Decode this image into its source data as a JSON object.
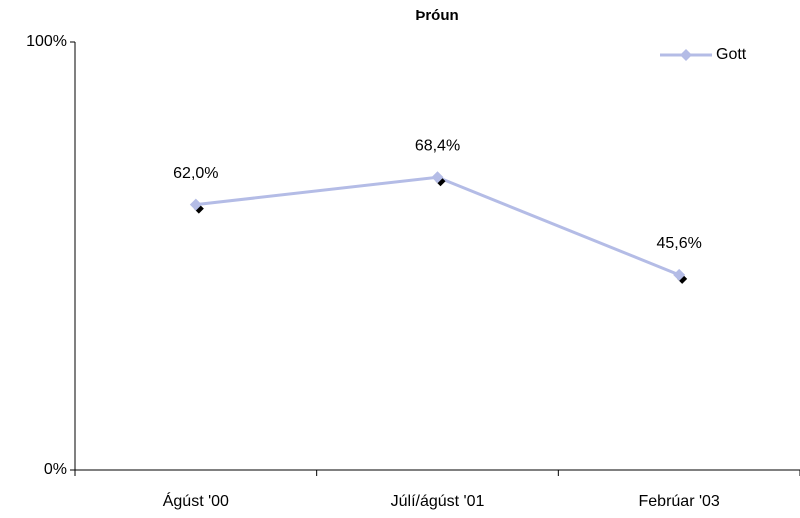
{
  "chart_data": {
    "type": "line",
    "title": "Þróun",
    "categories": [
      "Ágúst '00",
      "Júlí/ágúst '01",
      "Febrúar '03"
    ],
    "series": [
      {
        "name": "Gott",
        "color": "#b4bce6",
        "values": [
          62.0,
          68.4,
          45.6
        ],
        "value_labels": [
          "62,0%",
          "68,4%",
          "45,6%"
        ]
      }
    ],
    "ylim": [
      0,
      100
    ],
    "yticks": [
      {
        "value": 0,
        "label": "0%"
      },
      {
        "value": 100,
        "label": "100%"
      }
    ],
    "legend": "top-right"
  }
}
